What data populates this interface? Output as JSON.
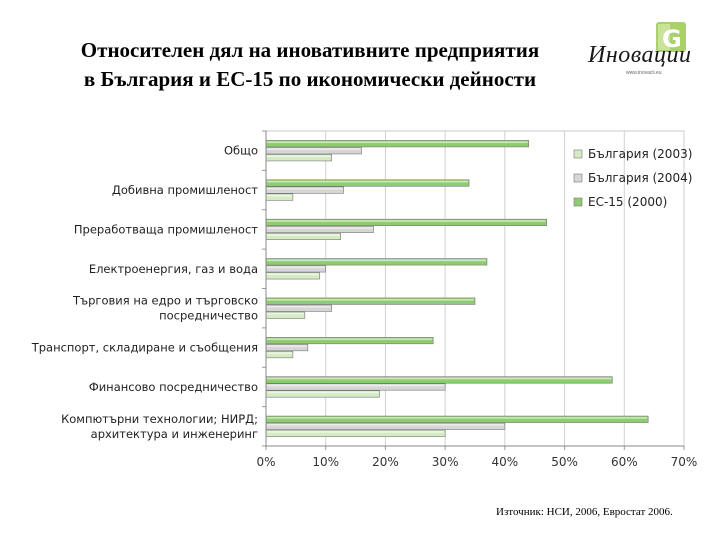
{
  "title_line1": "Относителен дял на иновативните предприятия",
  "title_line2": "в България и ЕС-15 по икономически дейности",
  "logo": {
    "text": "Иновации",
    "url": "www.inovacii.eu",
    "mark": "G",
    "icon": "leaf-g-icon"
  },
  "source": "Източник: НСИ, 2006, Евростат 2006.",
  "chart_data": {
    "type": "bar",
    "orientation": "horizontal",
    "categories": [
      [
        "Общо"
      ],
      [
        "Добивна промишленост"
      ],
      [
        "Преработваща промишленост"
      ],
      [
        "Електроенергия, газ и вода"
      ],
      [
        "Търговия на едро и търговско",
        "посредничество"
      ],
      [
        "Транспорт, складиране и съобщения"
      ],
      [
        "Финансово посредничество"
      ],
      [
        "Компютърни технологии; НИРД;",
        "архитектура и инженеринг"
      ]
    ],
    "series": [
      {
        "name": "България (2003)",
        "color": "#d4ebc4",
        "values": [
          11,
          4.5,
          12.5,
          9,
          6.5,
          4.5,
          19,
          30
        ]
      },
      {
        "name": "България (2004)",
        "color": "#d6d6d6",
        "values": [
          16,
          13,
          18,
          10,
          11,
          7,
          30,
          40
        ]
      },
      {
        "name": "ЕС-15 (2000)",
        "color": "#8fcc6f",
        "values": [
          44,
          34,
          47,
          37,
          35,
          28,
          58,
          64
        ]
      }
    ],
    "xlim": [
      0,
      70
    ],
    "xticks": [
      "0%",
      "10%",
      "20%",
      "30%",
      "40%",
      "50%",
      "60%",
      "70%"
    ],
    "grid": true,
    "legend_position": "right"
  }
}
